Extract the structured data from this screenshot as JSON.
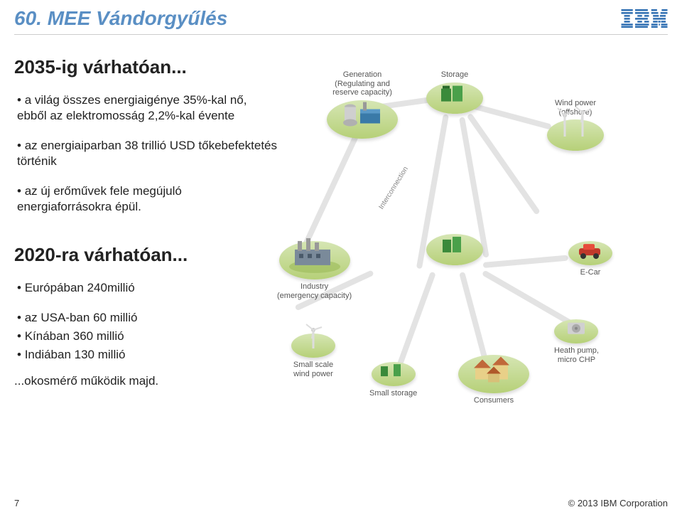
{
  "header": {
    "title": "60. MEE Vándorgyűlés",
    "logo_label": "IBM",
    "title_color": "#5a8fc4"
  },
  "section2035": {
    "title": "2035-ig várhatóan...",
    "bullets": [
      "a világ összes energiaigénye 35%-kal nő, ebből az elektromosság 2,2%-kal évente",
      "az energiaiparban 38 trillió USD tőkebefektetés történik",
      "az új erőművek fele megújuló energiaforrásokra épül."
    ]
  },
  "section2020": {
    "title": "2020-ra várhatóan...",
    "bullets": [
      "Európában 240millió",
      "az USA-ban 60 millió",
      "Kínában 360 millió",
      "Indiában 130 millió"
    ],
    "closing": "...okosmérő működik majd."
  },
  "diagram": {
    "interconnection_label": "Interconnection",
    "plate_colors": {
      "top": "#d6e6b4",
      "bottom": "#b6d078"
    },
    "connection_color": "#e3e3e3",
    "nodes": {
      "generation": {
        "label": "Generation\n(Regulating and\nreserve capacity)"
      },
      "storage": {
        "label": "Storage"
      },
      "windpower": {
        "label": "Wind power\n(offshore)"
      },
      "ecar": {
        "label": "E-Car"
      },
      "heatpump": {
        "label": "Heath pump,\nmicro CHP"
      },
      "consumers": {
        "label": "Consumers"
      },
      "smallstorage": {
        "label": "Small storage"
      },
      "smallwind": {
        "label": "Small scale\nwind power"
      },
      "industry": {
        "label": "Industry\n(emergency capacity)"
      }
    }
  },
  "footer": {
    "page": "7",
    "copyright": "© 2013 IBM Corporation"
  }
}
